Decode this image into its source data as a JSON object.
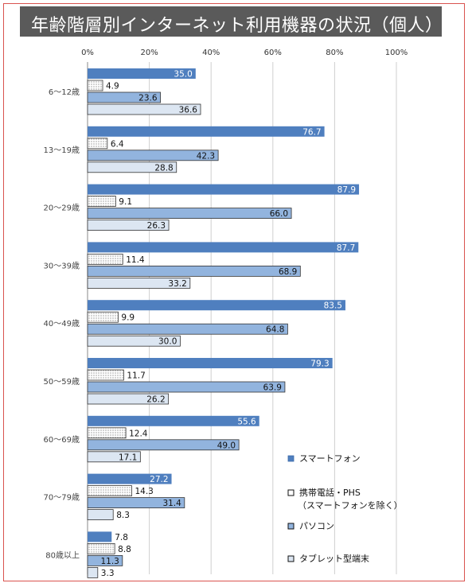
{
  "title": "年齢階層別インターネット利用機器の状況（個人）",
  "chart_data": {
    "type": "bar",
    "orientation": "horizontal",
    "title": "年齢階層別インターネット利用機器の状況（個人）",
    "x_ticks": [
      "0%",
      "20%",
      "40%",
      "60%",
      "80%",
      "100%"
    ],
    "xlim": [
      0,
      100
    ],
    "grid": true,
    "legend_position": "right",
    "categories": [
      "6～12歳",
      "13～19歳",
      "20～29歳",
      "30～39歳",
      "40～49歳",
      "50～59歳",
      "60～69歳",
      "70～79歳",
      "80歳以上"
    ],
    "series": [
      {
        "name": "スマートフォン",
        "color": "#4f7fbf",
        "values": [
          35.0,
          76.7,
          87.9,
          87.7,
          83.5,
          79.3,
          55.6,
          27.2,
          7.8
        ]
      },
      {
        "name": "携帯電話・PHS",
        "sub": "（スマートフォンを除く）",
        "color": "#ffffff",
        "values": [
          4.9,
          6.4,
          9.1,
          11.4,
          9.9,
          11.7,
          12.4,
          14.3,
          8.8
        ]
      },
      {
        "name": "パソコン",
        "color": "#92b4de",
        "values": [
          23.6,
          42.3,
          66.0,
          68.9,
          64.8,
          63.9,
          49.0,
          31.4,
          11.3
        ]
      },
      {
        "name": "タブレット型端末",
        "color": "#dce6f2",
        "values": [
          36.6,
          28.8,
          26.3,
          33.2,
          30.0,
          26.2,
          17.1,
          8.3,
          3.3
        ]
      }
    ]
  }
}
